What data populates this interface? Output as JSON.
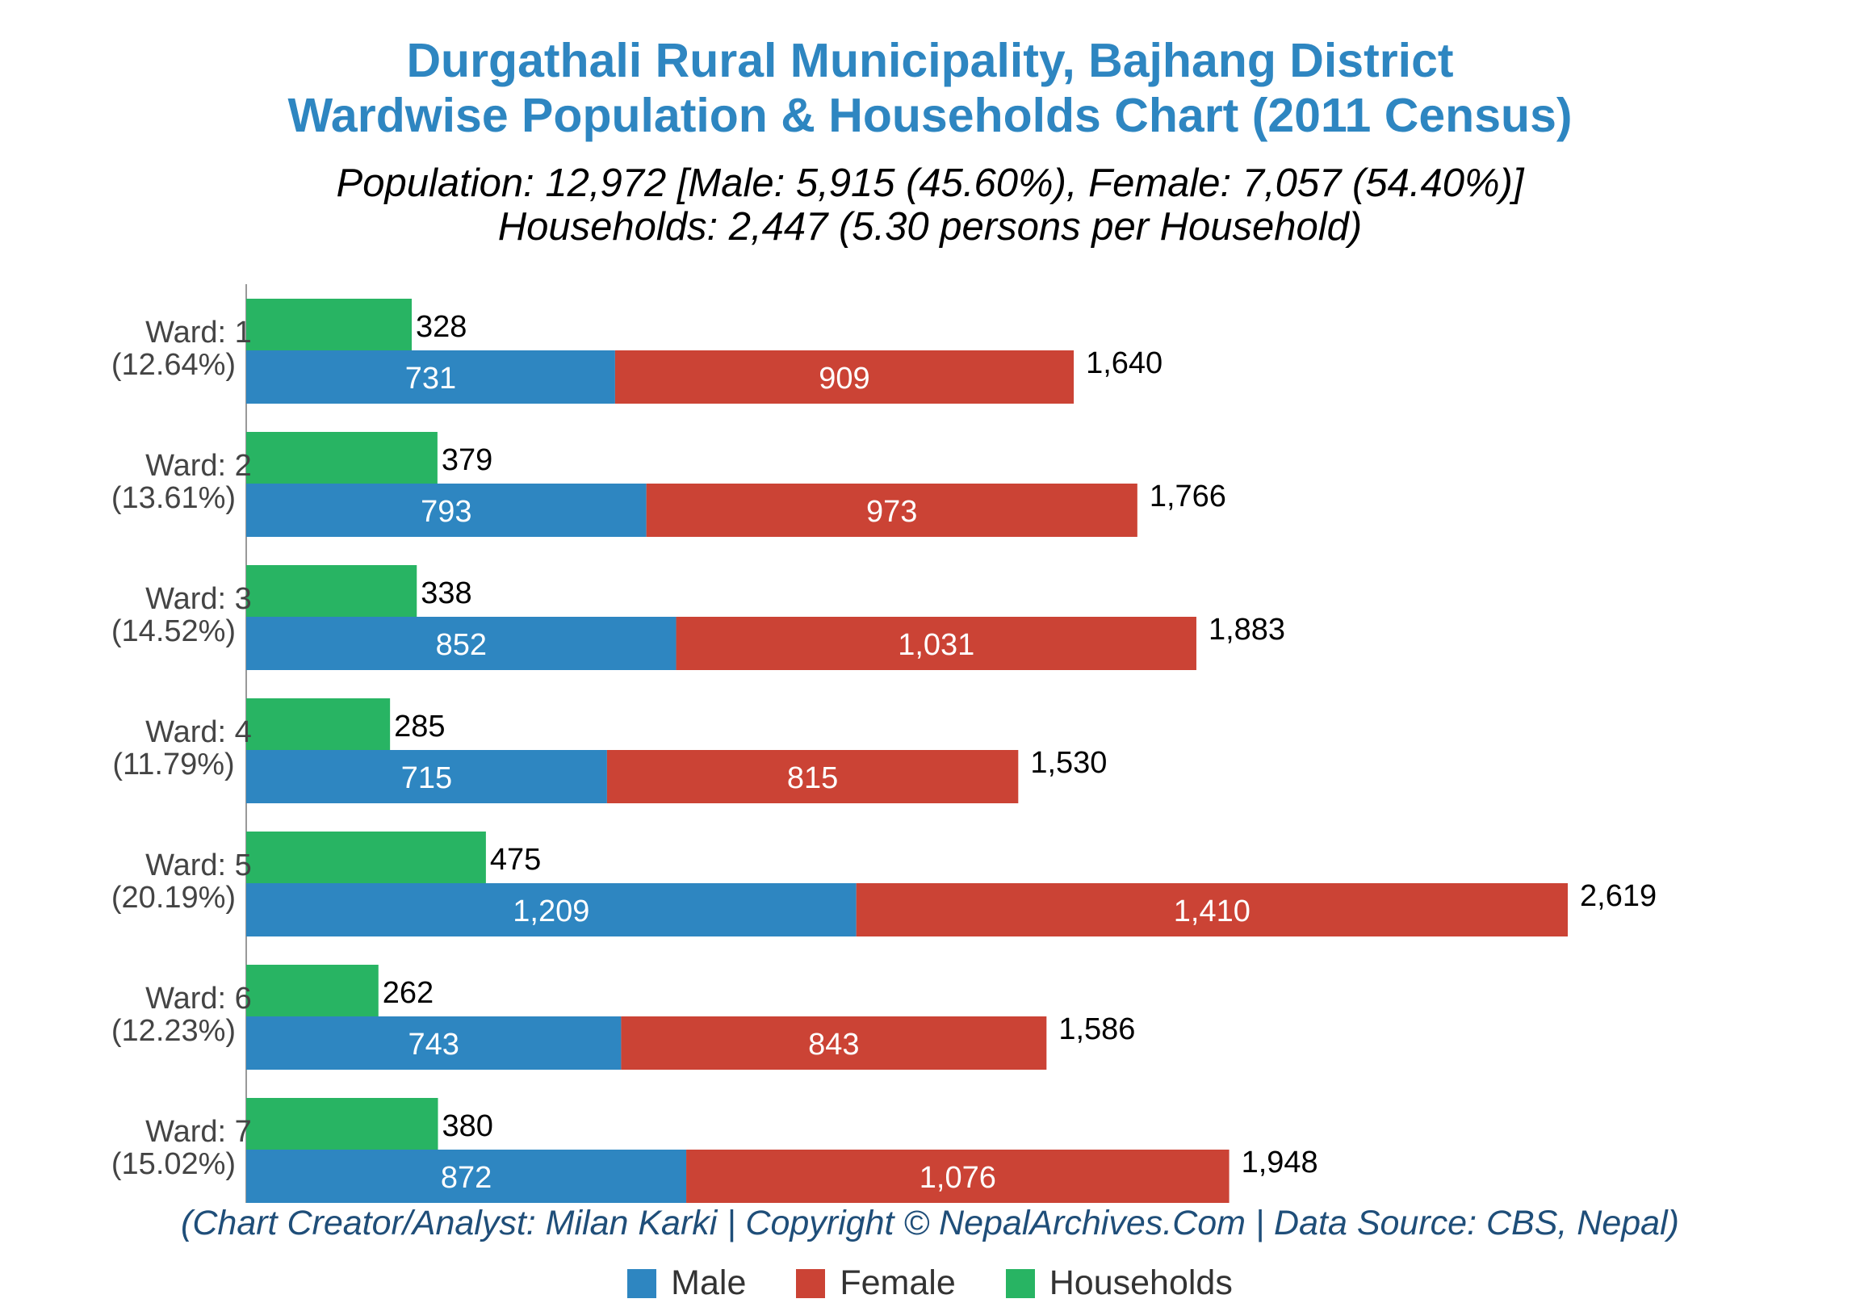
{
  "header": {
    "title_line1": "Durgathali Rural Municipality, Bajhang District",
    "title_line2": "Wardwise Population & Households Chart (2011 Census)",
    "subtitle_line1": "Population: 12,972 [Male: 5,915 (45.60%), Female: 7,057 (54.40%)]",
    "subtitle_line2": "Households: 2,447 (5.30 persons per Household)"
  },
  "footer": {
    "credit": "(Chart Creator/Analyst: Milan Karki | Copyright © NepalArchives.Com | Data Source: CBS, Nepal)"
  },
  "legend": {
    "male": "Male",
    "female": "Female",
    "households": "Households"
  },
  "colors": {
    "male": "#2e86c1",
    "female": "#cb4335",
    "households": "#28b463",
    "axis": "#999999"
  },
  "chart_data": {
    "type": "bar",
    "orientation": "horizontal",
    "stacked_series": [
      "Male",
      "Female"
    ],
    "categories": [
      "Ward: 1",
      "Ward: 2",
      "Ward: 3",
      "Ward: 4",
      "Ward: 5",
      "Ward: 6",
      "Ward: 7"
    ],
    "category_percent": [
      "(12.64%)",
      "(13.61%)",
      "(14.52%)",
      "(11.79%)",
      "(20.19%)",
      "(12.23%)",
      "(15.02%)"
    ],
    "series": [
      {
        "name": "Male",
        "values": [
          731,
          793,
          852,
          715,
          1209,
          743,
          872
        ],
        "labels": [
          "731",
          "793",
          "852",
          "715",
          "1,209",
          "743",
          "872"
        ]
      },
      {
        "name": "Female",
        "values": [
          909,
          973,
          1031,
          815,
          1410,
          843,
          1076
        ],
        "labels": [
          "909",
          "973",
          "1,031",
          "815",
          "1,410",
          "843",
          "1,076"
        ]
      },
      {
        "name": "Households",
        "values": [
          328,
          379,
          338,
          285,
          475,
          262,
          380
        ],
        "labels": [
          "328",
          "379",
          "338",
          "285",
          "475",
          "262",
          "380"
        ]
      }
    ],
    "totals": [
      1640,
      1766,
      1883,
      1530,
      2619,
      1586,
      1948
    ],
    "total_labels": [
      "1,640",
      "1,766",
      "1,883",
      "1,530",
      "2,619",
      "1,586",
      "1,948"
    ],
    "xlim": [
      0,
      2619
    ],
    "grid": false,
    "legend_position": "bottom"
  }
}
